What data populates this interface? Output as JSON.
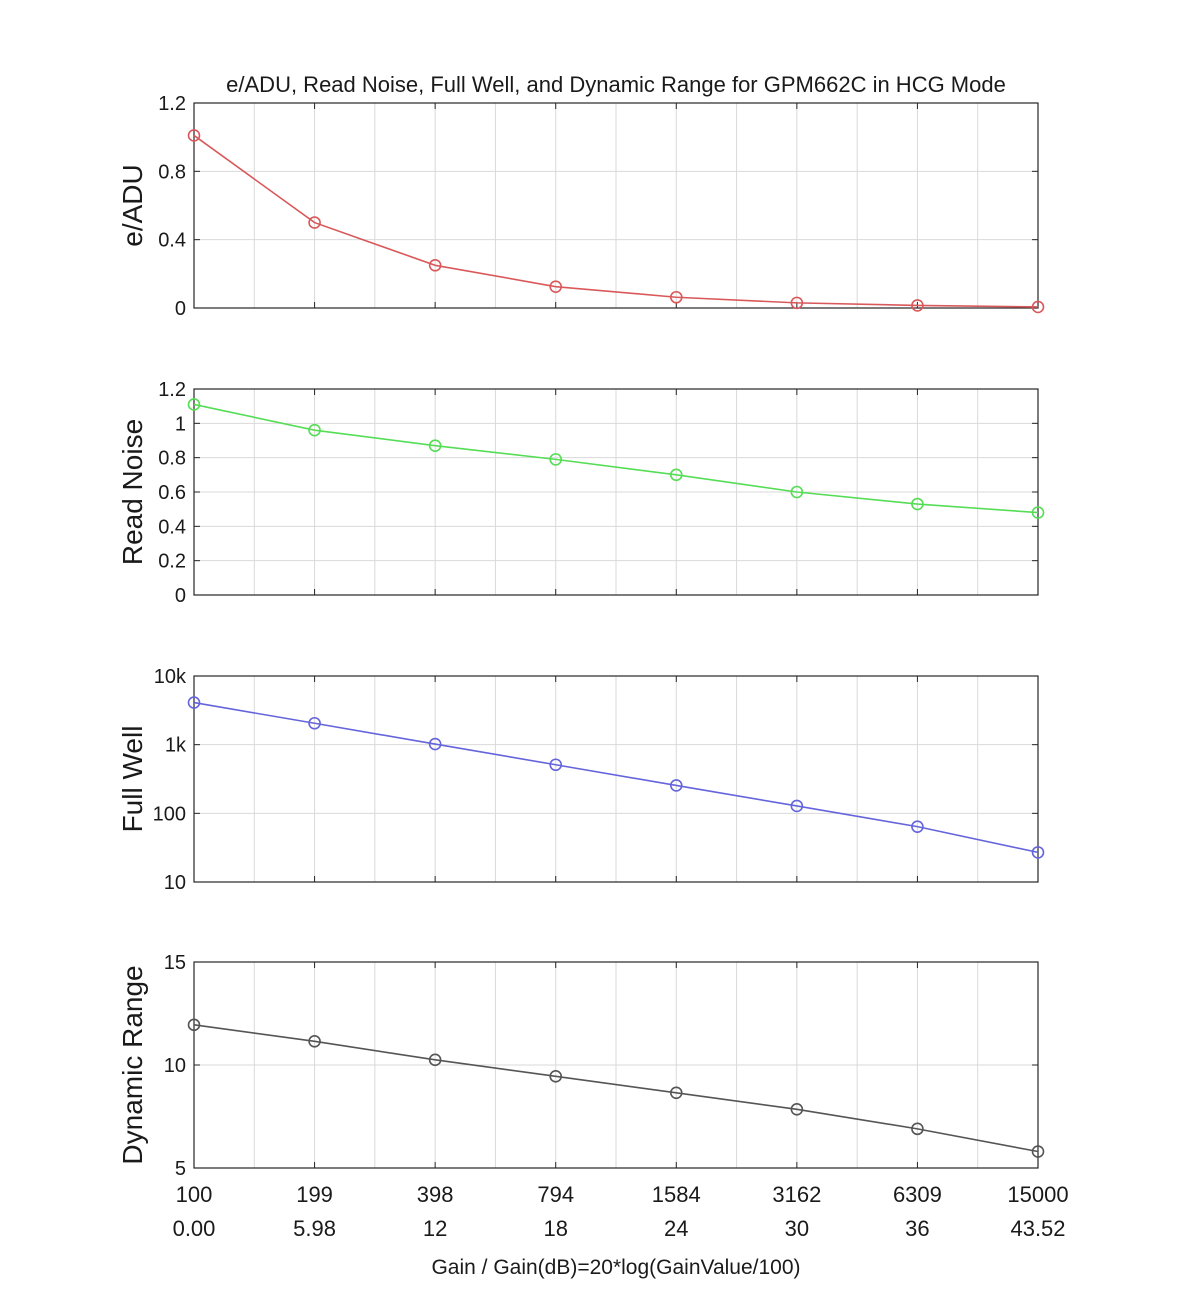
{
  "title": "e/ADU, Read Noise, Full Well, and Dynamic Range for GPM662C in HCG Mode",
  "xlabel": "Gain / Gain(dB)=20*log(GainValue/100)",
  "x_ticks_gain": [
    "100",
    "199",
    "398",
    "794",
    "1584",
    "3162",
    "6309",
    "15000"
  ],
  "x_ticks_db": [
    "0.00",
    "5.98",
    "12",
    "18",
    "24",
    "30",
    "36",
    "43.52"
  ],
  "chart_data": [
    {
      "type": "line",
      "ylabel": "e/ADU",
      "yscale": "linear",
      "ylim": [
        0,
        1.2
      ],
      "yticks": [
        0,
        0.4,
        0.8,
        1.2
      ],
      "ytick_labels": [
        "0",
        "0.4",
        "0.8",
        "1.2"
      ],
      "grid": true,
      "color": "#d9595b",
      "x": [
        0,
        5.98,
        12,
        18,
        24,
        30,
        36,
        43.52
      ],
      "values": [
        1.01,
        0.5,
        0.25,
        0.125,
        0.063,
        0.03,
        0.015,
        0.006
      ]
    },
    {
      "type": "line",
      "ylabel": "Read Noise",
      "yscale": "linear",
      "ylim": [
        0,
        1.2
      ],
      "yticks": [
        0,
        0.2,
        0.4,
        0.6,
        0.8,
        1,
        1.2
      ],
      "ytick_labels": [
        "0",
        "0.2",
        "0.4",
        "0.6",
        "0.8",
        "1",
        "1.2"
      ],
      "grid": true,
      "color": "#55dd55",
      "x": [
        0,
        5.98,
        12,
        18,
        24,
        30,
        36,
        43.52
      ],
      "values": [
        1.11,
        0.96,
        0.87,
        0.79,
        0.7,
        0.6,
        0.53,
        0.48
      ]
    },
    {
      "type": "line",
      "ylabel": "Full Well",
      "yscale": "log",
      "ylim": [
        10,
        10000
      ],
      "yticks": [
        10,
        100,
        1000,
        10000
      ],
      "ytick_labels": [
        "10",
        "100",
        "1k",
        "10k"
      ],
      "grid": true,
      "color": "#6464dc",
      "x": [
        0,
        5.98,
        12,
        18,
        24,
        30,
        36,
        43.52
      ],
      "values": [
        4100,
        2050,
        1020,
        510,
        255,
        128,
        64,
        27
      ]
    },
    {
      "type": "line",
      "ylabel": "Dynamic Range",
      "yscale": "linear",
      "ylim": [
        5,
        15
      ],
      "yticks": [
        5,
        10,
        15
      ],
      "ytick_labels": [
        "5",
        "10",
        "15"
      ],
      "grid": true,
      "color": "#555555",
      "x": [
        0,
        5.98,
        12,
        18,
        24,
        30,
        36,
        43.52
      ],
      "values": [
        11.95,
        11.15,
        10.25,
        9.45,
        8.65,
        7.85,
        6.9,
        5.8
      ]
    }
  ]
}
